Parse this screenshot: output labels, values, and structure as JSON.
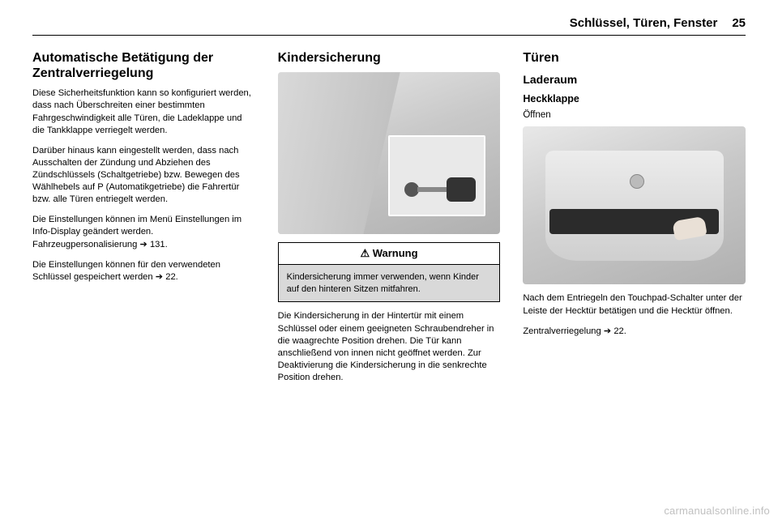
{
  "header": {
    "section": "Schlüssel, Türen, Fenster",
    "page": "25"
  },
  "col1": {
    "h2": "Automatische Betätigung der Zentralverriegelung",
    "p1": "Diese Sicherheitsfunktion kann so konfiguriert werden, dass nach Überschreiten einer bestimmten Fahrgeschwindigkeit alle Türen, die Ladeklappe und die Tankklappe verriegelt werden.",
    "p2": "Darüber hinaus kann eingestellt werden, dass nach Ausschalten der Zündung und Abziehen des Zündschlüssels (Schaltgetriebe) bzw. Bewegen des Wählhebels auf P (Automatikgetriebe) die Fahrertür bzw. alle Türen entriegelt werden.",
    "p3_a": "Die Einstellungen können im Menü Einstellungen im Info-Display geändert werden. Fahrzeugpersonalisierung ",
    "p3_ref": "➔ 131.",
    "p4_a": "Die Einstellungen können für den verwendeten Schlüssel gespeichert werden ",
    "p4_ref": "➔ 22."
  },
  "col2": {
    "h2": "Kindersicherung",
    "warn_title": "⚠ Warnung",
    "warn_body": "Kindersicherung immer verwenden, wenn Kinder auf den hinteren Sitzen mitfahren.",
    "p1": "Die Kindersicherung in der Hintertür mit einem Schlüssel oder einem geeigneten Schraubendreher in die waagrechte Position drehen. Die Tür kann anschließend von innen nicht geöffnet werden. Zur Deaktivierung die Kindersicherung in die senkrechte Position drehen."
  },
  "col3": {
    "h2": "Türen",
    "h3": "Laderaum",
    "h4": "Heckklappe",
    "h5": "Öffnen",
    "p1": "Nach dem Entriegeln den Touchpad-Schalter unter der Leiste der Hecktür betätigen und die Hecktür öffnen.",
    "p2_a": "Zentralverriegelung ",
    "p2_ref": "➔ 22."
  },
  "watermark": "carmanualsonline.info"
}
